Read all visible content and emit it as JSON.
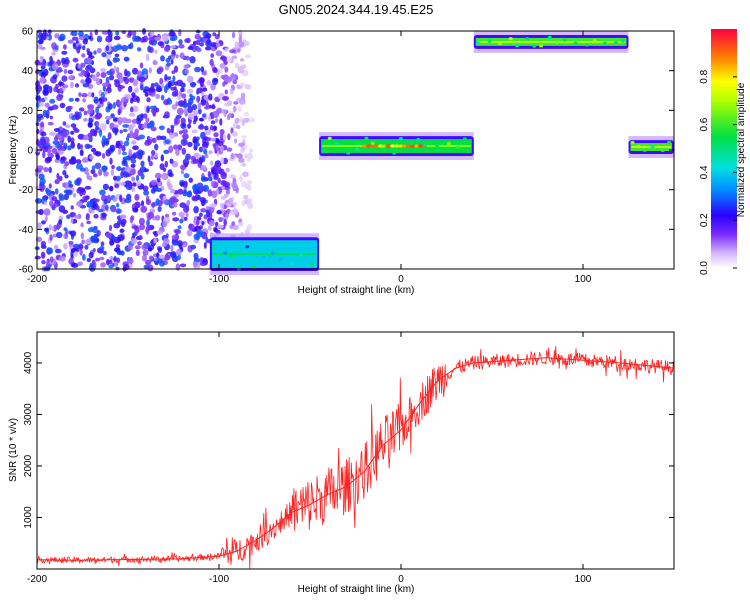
{
  "title": "GN05.2024.344.19.45.E25",
  "chart_data": [
    {
      "type": "heatmap",
      "title": "GN05.2024.344.19.45.E25",
      "xlabel": "Height of straight line (km)",
      "ylabel": "Frequency (Hz)",
      "xlim": [
        -200,
        150
      ],
      "ylim": [
        -60,
        60
      ],
      "x_ticks": [
        -200,
        -100,
        0,
        100
      ],
      "y_ticks": [
        -60,
        -40,
        -20,
        0,
        20,
        40,
        60
      ],
      "colorbar": {
        "label": "Normalized spectral amplitude",
        "range": [
          0,
          1
        ],
        "ticks": [
          0.0,
          0.2,
          0.4,
          0.6,
          0.8
        ]
      },
      "features": [
        {
          "kind": "noise-cloud",
          "x_range": [
            -200,
            -90
          ],
          "y_range": [
            -60,
            60
          ],
          "level": 0.2
        },
        {
          "kind": "band",
          "x_range": [
            -105,
            -45
          ],
          "y_range": [
            -60,
            -45
          ],
          "level": 0.4
        },
        {
          "kind": "band",
          "x_range": [
            -45,
            40
          ],
          "y_range": [
            -2,
            6
          ],
          "level": 0.55,
          "peak_level": 0.95,
          "peak_x_range": [
            -20,
            15
          ]
        },
        {
          "kind": "band",
          "x_range": [
            40,
            125
          ],
          "y_range": [
            52,
            57
          ],
          "level": 0.6
        },
        {
          "kind": "band",
          "x_range": [
            125,
            150
          ],
          "y_range": [
            -1,
            4
          ],
          "level": 0.6
        }
      ],
      "grid": false,
      "legend": "none"
    },
    {
      "type": "line",
      "xlabel": "Height of straight line (km)",
      "ylabel": "SNR (10 * v/v)",
      "xlim": [
        -200,
        150
      ],
      "ylim": [
        0,
        4600
      ],
      "x_ticks": [
        -200,
        -100,
        0,
        100
      ],
      "y_ticks": [
        1000,
        2000,
        3000,
        4000
      ],
      "series": [
        {
          "color": "#ff2020",
          "x": [
            -200,
            -180,
            -160,
            -140,
            -120,
            -100,
            -90,
            -80,
            -70,
            -60,
            -50,
            -40,
            -30,
            -20,
            -10,
            0,
            10,
            20,
            30,
            40,
            60,
            80,
            100,
            120,
            150
          ],
          "values": [
            180,
            170,
            180,
            190,
            200,
            250,
            350,
            550,
            800,
            1100,
            1250,
            1450,
            1600,
            1900,
            2400,
            2700,
            3200,
            3650,
            3900,
            4000,
            4050,
            4100,
            4050,
            4000,
            3900
          ]
        }
      ],
      "grid": false,
      "legend": "none"
    }
  ]
}
